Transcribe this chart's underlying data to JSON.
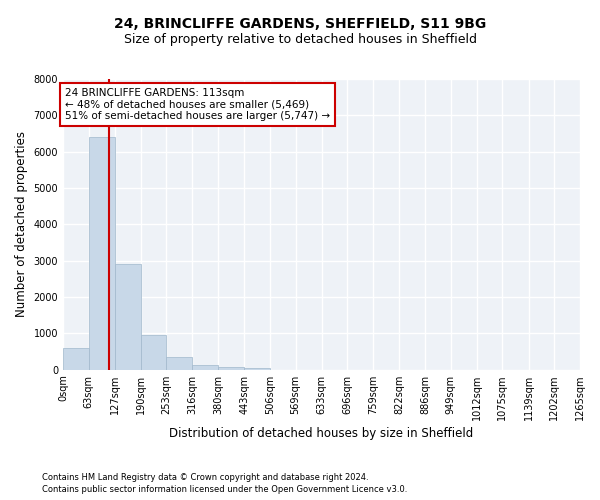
{
  "title1": "24, BRINCLIFFE GARDENS, SHEFFIELD, S11 9BG",
  "title2": "Size of property relative to detached houses in Sheffield",
  "xlabel": "Distribution of detached houses by size in Sheffield",
  "ylabel": "Number of detached properties",
  "footnote1": "Contains HM Land Registry data © Crown copyright and database right 2024.",
  "footnote2": "Contains public sector information licensed under the Open Government Licence v3.0.",
  "bin_edges": [
    0,
    63,
    127,
    190,
    253,
    316,
    380,
    443,
    506,
    569,
    633,
    696,
    759,
    822,
    886,
    949,
    1012,
    1075,
    1139,
    1202,
    1265
  ],
  "bar_heights": [
    600,
    6400,
    2900,
    950,
    360,
    130,
    70,
    50,
    0,
    0,
    0,
    0,
    0,
    0,
    0,
    0,
    0,
    0,
    0,
    0
  ],
  "bar_color": "#c8d8e8",
  "bar_edgecolor": "#a0b8cc",
  "property_size": 113,
  "red_line_color": "#cc0000",
  "annotation_line1": "24 BRINCLIFFE GARDENS: 113sqm",
  "annotation_line2": "← 48% of detached houses are smaller (5,469)",
  "annotation_line3": "51% of semi-detached houses are larger (5,747) →",
  "annotation_box_edgecolor": "#cc0000",
  "ylim": [
    0,
    8000
  ],
  "yticks": [
    0,
    1000,
    2000,
    3000,
    4000,
    5000,
    6000,
    7000,
    8000
  ],
  "background_color": "#eef2f7",
  "grid_color": "#ffffff",
  "title1_fontsize": 10,
  "title2_fontsize": 9,
  "xlabel_fontsize": 8.5,
  "ylabel_fontsize": 8.5,
  "tick_fontsize": 7,
  "annotation_fontsize": 7.5
}
